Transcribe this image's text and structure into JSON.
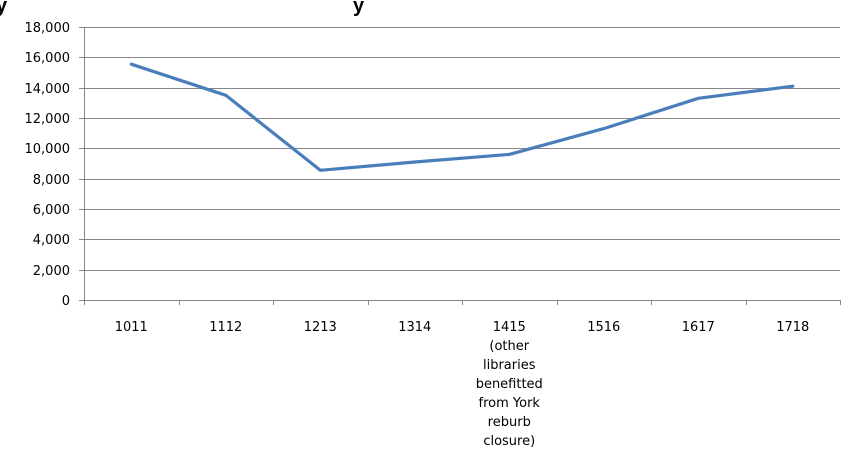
{
  "chart_data": {
    "type": "line",
    "title": "",
    "xlabel": "",
    "ylabel": "",
    "categories": [
      "1011",
      "1112",
      "1213",
      "1314",
      "1415 (other libraries benefitted from York reburb closure)",
      "1516",
      "1617",
      "1718"
    ],
    "category_lines": [
      [
        "1011"
      ],
      [
        "1112"
      ],
      [
        "1213"
      ],
      [
        "1314"
      ],
      [
        "1415",
        "(other",
        "libraries",
        "benefitted",
        "from York",
        "reburb",
        "closure)"
      ],
      [
        "1516"
      ],
      [
        "1617"
      ],
      [
        "1718"
      ]
    ],
    "series": [
      {
        "values": [
          15550,
          13500,
          8550,
          9100,
          9600,
          11300,
          13300,
          14100
        ],
        "color": "#4a7ebb"
      }
    ],
    "ylim": [
      0,
      18000
    ],
    "yticks": [
      0,
      2000,
      4000,
      6000,
      8000,
      10000,
      12000,
      14000,
      16000,
      18000
    ],
    "ytick_labels": [
      "0",
      "2,000",
      "4,000",
      "6,000",
      "8,000",
      "10,000",
      "12,000",
      "14,000",
      "16,000",
      "18,000"
    ],
    "grid": true,
    "gridline_color": "#868686",
    "legend": "none"
  }
}
